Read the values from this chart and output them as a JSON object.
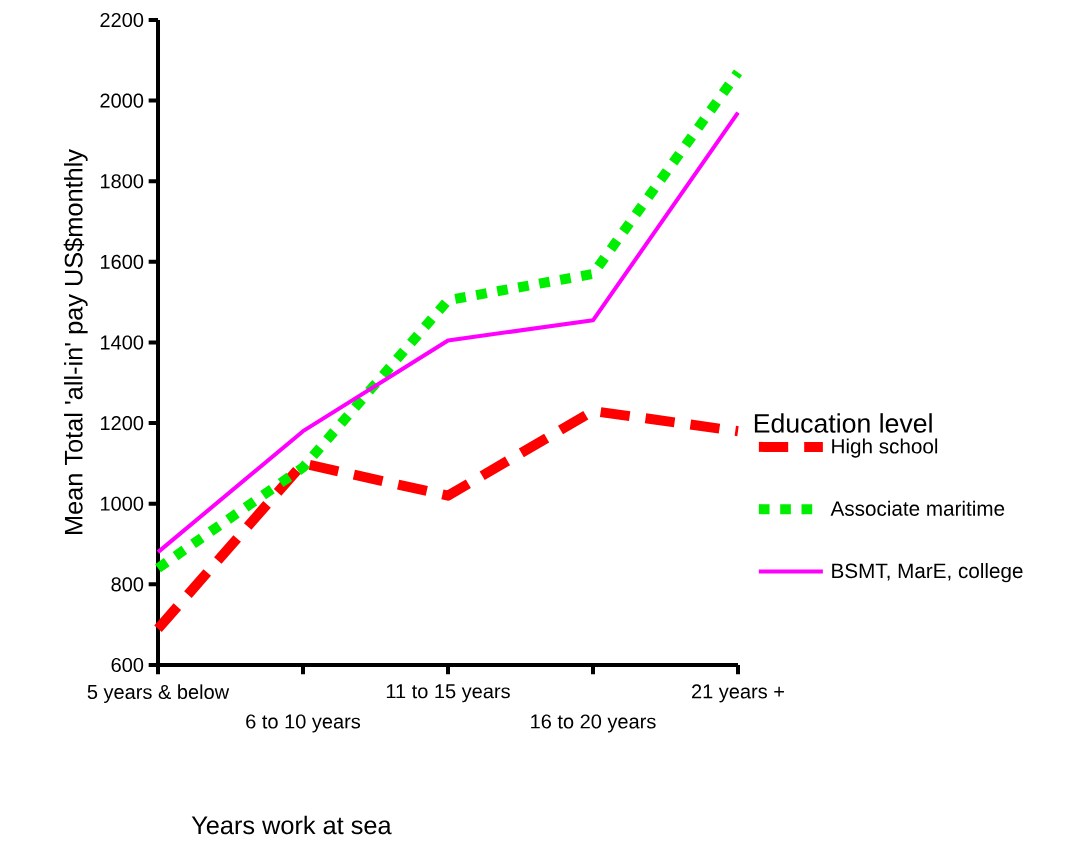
{
  "chart_data": {
    "type": "line",
    "xlabel": "Years  work at  sea",
    "ylabel": "Mean Total 'all-in' pay US$monthly",
    "legend_title": "Education level",
    "categories": [
      "5  years & below",
      "6  to 10 years",
      "11  to 15 years",
      "16  to 20  years",
      "21 years +"
    ],
    "series": [
      {
        "name": "High school",
        "color": "#ff0000",
        "line_style": "dashed",
        "values": [
          690,
          1100,
          1020,
          1230,
          1180
        ]
      },
      {
        "name": "Associate maritime",
        "color": "#00ee00",
        "line_style": "dotted",
        "values": [
          840,
          1090,
          1505,
          1570,
          2070
        ]
      },
      {
        "name": "BSMT, MarE, college",
        "color": "#ff00ff",
        "line_style": "solid",
        "values": [
          880,
          1180,
          1405,
          1455,
          1970
        ]
      }
    ],
    "ylim": [
      600,
      2200
    ],
    "yticks": [
      600,
      800,
      1000,
      1200,
      1400,
      1600,
      1800,
      2000,
      2200
    ],
    "legend": "right",
    "marker": "none",
    "grid": false
  }
}
